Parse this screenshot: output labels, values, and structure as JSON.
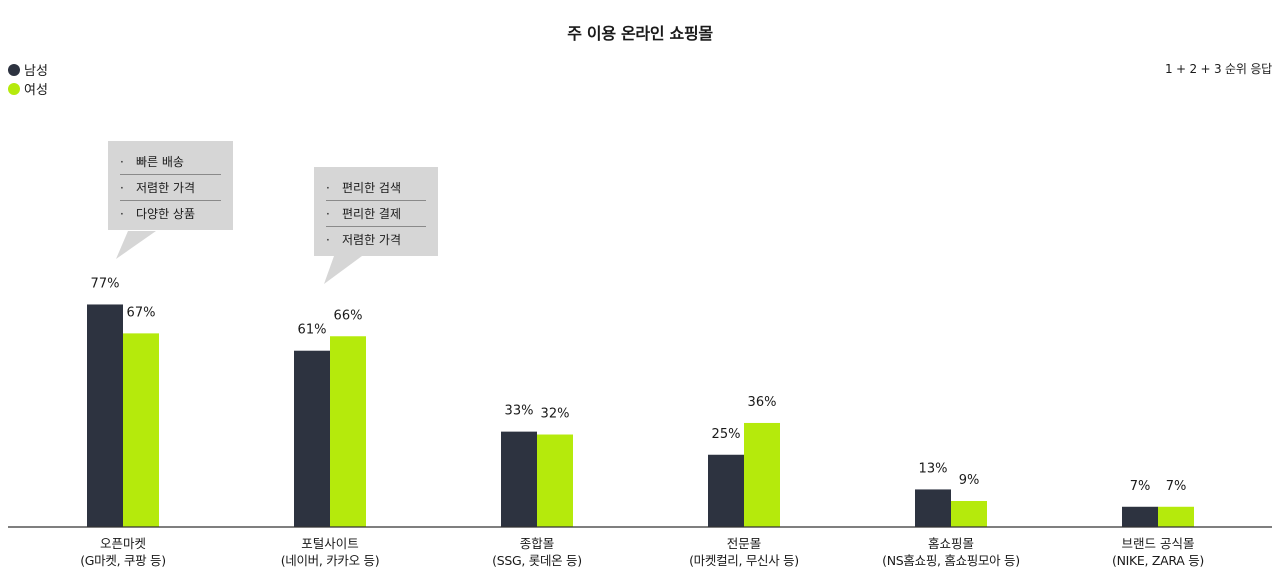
{
  "colors": {
    "male": "#2d3340",
    "female": "#b5ea0c",
    "callout_bg": "#d6d6d6",
    "axis": "#333333"
  },
  "legend": {
    "male_label": "남성",
    "female_label": "여성"
  },
  "note": "1 + 2 + 3 순위 응답",
  "callouts": [
    {
      "items": [
        "빠른 배송",
        "저렴한 가격",
        "다양한 상품"
      ]
    },
    {
      "items": [
        "편리한 검색",
        "편리한 결제",
        "저렴한 가격"
      ]
    }
  ],
  "chart_data": {
    "type": "bar",
    "title": "주 이용 온라인 쇼핑몰",
    "categories": [
      [
        "오픈마켓",
        "(G마켓, 쿠팡 등)"
      ],
      [
        "포털사이트",
        "(네이버, 카카오 등)"
      ],
      [
        "종합몰",
        "(SSG, 롯데온 등)"
      ],
      [
        "전문몰",
        "(마켓컬리, 무신사 등)"
      ],
      [
        "홈쇼핑몰",
        "(NS홈쇼핑, 홈쇼핑모아 등)"
      ],
      [
        "브랜드 공식몰",
        "(NIKE, ZARA 등)"
      ]
    ],
    "series": [
      {
        "name": "남성",
        "values": [
          77,
          61,
          33,
          25,
          13,
          7
        ]
      },
      {
        "name": "여성",
        "values": [
          67,
          66,
          32,
          36,
          9,
          7
        ]
      }
    ],
    "value_suffix": "%",
    "ylim": [
      0,
      100
    ],
    "grid": false,
    "legend_position": "top-left"
  }
}
